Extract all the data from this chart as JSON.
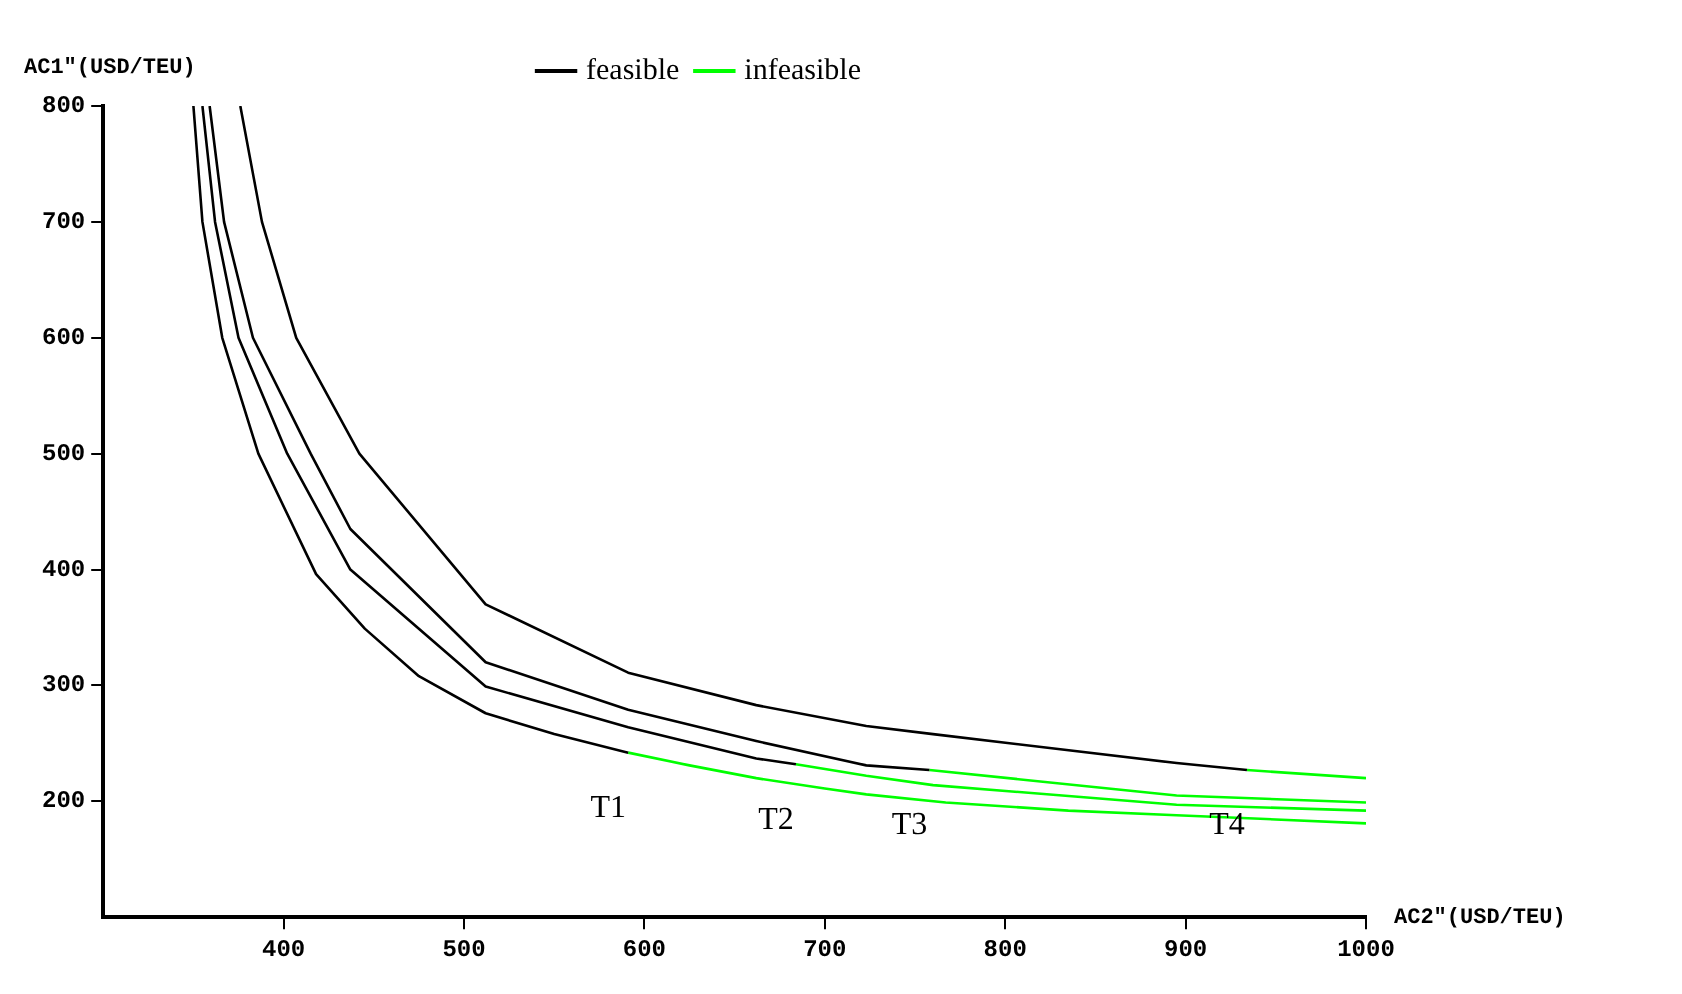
{
  "chart_data": {
    "type": "line",
    "xlabel": "AC2\"(USD/TEU)",
    "ylabel": "AC1\"(USD/TEU)",
    "xlim": [
      300,
      1000
    ],
    "ylim": [
      100,
      800
    ],
    "xticks": [
      400,
      500,
      600,
      700,
      800,
      900,
      1000
    ],
    "yticks": [
      200,
      300,
      400,
      500,
      600,
      700,
      800
    ],
    "grid": false,
    "legend": "top",
    "marker": "none",
    "line_style": "solid",
    "series": [
      {
        "name": "feasible",
        "color": "#000000",
        "x": [
          350,
          355,
          366,
          386,
          418,
          445,
          475,
          512,
          550,
          591
        ],
        "values": [
          800,
          700,
          600,
          500,
          396,
          349,
          308,
          276,
          258,
          242
        ]
      },
      {
        "name": "infeasible",
        "color": "#00ff00",
        "x": [
          591,
          625,
          662,
          700,
          723,
          767,
          835,
          895,
          1000
        ],
        "values": [
          242,
          231,
          220,
          211,
          206,
          199,
          192,
          188,
          181
        ]
      },
      {
        "color": "#000000",
        "x": [
          355,
          362,
          375,
          402,
          437,
          512,
          591,
          662,
          684
        ],
        "values": [
          800,
          700,
          600,
          500,
          400,
          299,
          264,
          237,
          232
        ]
      },
      {
        "color": "#00ff00",
        "x": [
          684,
          723,
          760,
          895,
          1000
        ],
        "values": [
          232,
          222,
          214,
          197,
          192
        ]
      },
      {
        "color": "#000000",
        "x": [
          359,
          367,
          383,
          415,
          437,
          512,
          591,
          662,
          723,
          758
        ],
        "values": [
          800,
          700,
          600,
          500,
          435,
          320,
          279,
          252,
          231,
          227
        ]
      },
      {
        "color": "#00ff00",
        "x": [
          758,
          895,
          1000
        ],
        "values": [
          227,
          205,
          199
        ]
      },
      {
        "color": "#000000",
        "x": [
          376,
          388,
          407,
          442,
          512,
          591,
          662,
          723,
          760,
          895,
          934
        ],
        "values": [
          800,
          700,
          600,
          500,
          370,
          311,
          283,
          265,
          258,
          233,
          227
        ]
      },
      {
        "color": "#00ff00",
        "x": [
          934,
          1000
        ],
        "values": [
          227,
          220
        ]
      }
    ],
    "annotations": [
      {
        "text": "T1",
        "x": 591,
        "y": 242
      },
      {
        "text": "T2",
        "x": 684,
        "y": 232
      },
      {
        "text": "T3",
        "x": 758,
        "y": 227
      },
      {
        "text": "T4",
        "x": 934,
        "y": 227
      }
    ]
  }
}
